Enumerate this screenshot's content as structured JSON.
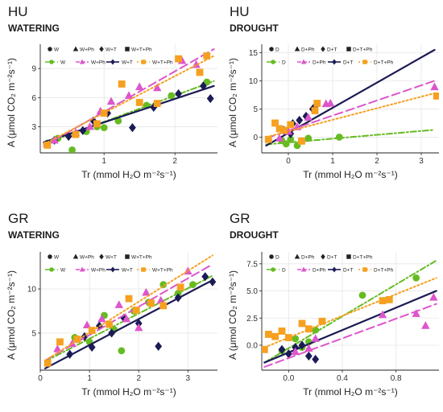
{
  "chart_data": [
    {
      "type": "scatter",
      "region": "HU",
      "condition": "WATERING",
      "xlabel": "Tr (mmol H₂O m⁻²s⁻¹)",
      "ylabel": "A (μmol CO₂ m⁻²s⁻¹)",
      "xlim": [
        0.1,
        2.6
      ],
      "ylim": [
        0.3,
        11.5
      ],
      "xticks": [
        1,
        2
      ],
      "yticks": [
        3,
        6,
        9
      ],
      "grid": true,
      "legend_position": "top",
      "series": [
        {
          "name": "W",
          "color": "#66bb22",
          "shape": "circle",
          "line": "dashdot",
          "x": [
            0.2,
            0.35,
            0.55,
            0.75,
            0.9,
            1.0,
            1.2,
            1.6,
            1.95,
            2.45
          ],
          "y": [
            1.3,
            1.8,
            0.6,
            2.5,
            3.0,
            2.9,
            3.6,
            5.2,
            6.2,
            7.6
          ],
          "fit": [
            [
              0.15,
              1.2
            ],
            [
              2.55,
              7.7
            ]
          ]
        },
        {
          "name": "W+T",
          "color": "#1b1b55",
          "shape": "diamond",
          "line": "solid",
          "x": [
            0.3,
            0.5,
            0.7,
            0.85,
            1.05,
            1.4,
            1.7,
            2.05,
            2.4,
            2.5
          ],
          "y": [
            1.6,
            2.0,
            2.6,
            3.6,
            4.4,
            2.9,
            5.0,
            6.4,
            7.2,
            5.9
          ],
          "fit": [
            [
              0.15,
              1.4
            ],
            [
              2.55,
              7.2
            ]
          ]
        },
        {
          "name": "W+Ph",
          "color": "#dd55cc",
          "shape": "triangle",
          "line": "longdash",
          "x": [
            0.3,
            0.6,
            0.8,
            0.95,
            1.1,
            1.35,
            1.5,
            1.75,
            2.1,
            2.3
          ],
          "y": [
            1.6,
            2.4,
            3.0,
            4.6,
            5.6,
            6.2,
            7.1,
            7.0,
            9.8,
            9.4
          ],
          "fit": [
            [
              0.15,
              1.0
            ],
            [
              2.55,
              11.0
            ]
          ]
        },
        {
          "name": "W+T+Ph",
          "color": "#f6a020",
          "shape": "square",
          "line": "dotted",
          "x": [
            0.2,
            0.6,
            0.9,
            1.0,
            1.25,
            1.5,
            1.75,
            2.05,
            2.35,
            2.45
          ],
          "y": [
            1.1,
            2.2,
            3.3,
            4.4,
            7.4,
            5.5,
            5.4,
            10.0,
            8.6,
            10.3
          ],
          "fit": [
            [
              0.15,
              1.2
            ],
            [
              2.55,
              10.3
            ]
          ]
        }
      ]
    },
    {
      "type": "scatter",
      "region": "HU",
      "condition": "DROUGHT",
      "xlabel": "Tr (mmol H₂O m⁻²s⁻¹)",
      "ylabel": "A (μmol CO₂ m⁻²s⁻¹)",
      "xlim": [
        -0.6,
        3.4
      ],
      "ylim": [
        -2.8,
        16.5
      ],
      "xticks": [
        0,
        1,
        2,
        3
      ],
      "yticks": [
        0,
        5,
        10,
        15
      ],
      "grid": true,
      "legend_position": "top",
      "series": [
        {
          "name": "D",
          "color": "#66bb22",
          "shape": "circle",
          "line": "dashdot",
          "x": [
            -0.15,
            -0.05,
            0.05,
            0.2,
            0.45,
            1.15
          ],
          "y": [
            -0.6,
            -1.2,
            -0.4,
            -1.5,
            -0.2,
            0.0
          ],
          "fit": [
            [
              -0.5,
              -1.3
            ],
            [
              3.3,
              1.3
            ]
          ]
        },
        {
          "name": "D+T",
          "color": "#1b1b55",
          "shape": "diamond",
          "line": "solid",
          "x": [
            -0.1,
            0.05,
            0.1,
            0.25,
            0.4,
            0.55,
            0.6
          ],
          "y": [
            1.2,
            0.6,
            2.4,
            3.0,
            3.7,
            5.0,
            5.4
          ],
          "fit": [
            [
              -0.5,
              -1.5
            ],
            [
              3.3,
              15.5
            ]
          ]
        },
        {
          "name": "D+Ph",
          "color": "#dd55cc",
          "shape": "triangle",
          "line": "longdash",
          "x": [
            -0.2,
            0.0,
            0.2,
            0.45,
            0.85,
            0.95,
            3.3
          ],
          "y": [
            -0.2,
            1.0,
            1.8,
            3.5,
            5.9,
            6.0,
            8.9
          ],
          "fit": [
            [
              -0.5,
              -0.2
            ],
            [
              3.3,
              10.0
            ]
          ]
        },
        {
          "name": "D+T+Ph",
          "color": "#f6a020",
          "shape": "square",
          "line": "dotted",
          "x": [
            -0.45,
            -0.3,
            -0.2,
            -0.1,
            0.05,
            0.3,
            0.6,
            0.65,
            3.35
          ],
          "y": [
            -0.4,
            2.5,
            1.5,
            1.2,
            2.2,
            -0.7,
            4.7,
            6.0,
            7.3
          ],
          "fit": [
            [
              -0.5,
              0.0
            ],
            [
              3.3,
              7.8
            ]
          ]
        }
      ]
    },
    {
      "type": "scatter",
      "region": "GR",
      "condition": "WATERING",
      "xlabel": "Tr (mmol H₂O m⁻²s⁻¹)",
      "ylabel": "A (μmol CO₂ m⁻²s⁻¹)",
      "xlim": [
        0,
        3.6
      ],
      "ylim": [
        0.8,
        14.2
      ],
      "xticks": [
        0,
        1,
        2,
        3
      ],
      "yticks": [
        5,
        10
      ],
      "grid": true,
      "legend_position": "top",
      "series": [
        {
          "name": "W",
          "color": "#66bb22",
          "shape": "circle",
          "line": "dashdot",
          "x": [
            0.7,
            1.0,
            1.3,
            1.5,
            1.65,
            1.9,
            2.2,
            2.5,
            2.8,
            3.1
          ],
          "y": [
            4.5,
            4.0,
            7.0,
            5.4,
            3.0,
            7.5,
            8.5,
            10.5,
            9.5,
            10.5
          ],
          "fit": [
            [
              0.1,
              1.8
            ],
            [
              3.5,
              11.5
            ]
          ]
        },
        {
          "name": "W+T",
          "color": "#1b1b55",
          "shape": "diamond",
          "line": "solid",
          "x": [
            0.6,
            0.9,
            1.05,
            1.2,
            1.45,
            1.7,
            2.0,
            2.4,
            2.8,
            3.35,
            3.5
          ],
          "y": [
            2.6,
            4.6,
            3.4,
            5.8,
            5.0,
            6.7,
            6.1,
            3.5,
            9.0,
            11.4,
            10.8
          ],
          "fit": [
            [
              0.1,
              1.0
            ],
            [
              3.5,
              11.0
            ]
          ]
        },
        {
          "name": "W+Ph",
          "color": "#dd55cc",
          "shape": "triangle",
          "line": "longdash",
          "x": [
            0.35,
            0.65,
            0.95,
            1.25,
            1.6,
            1.75,
            2.0,
            2.15,
            2.45,
            3.0
          ],
          "y": [
            3.2,
            3.8,
            5.9,
            6.6,
            8.2,
            6.6,
            5.6,
            9.6,
            8.7,
            12.0
          ],
          "fit": [
            [
              0.1,
              1.9
            ],
            [
              3.5,
              12.8
            ]
          ]
        },
        {
          "name": "W+T+Ph",
          "color": "#f6a020",
          "shape": "square",
          "line": "dotted",
          "x": [
            0.15,
            0.4,
            0.75,
            1.05,
            1.4,
            1.8,
            1.95,
            2.25,
            2.5,
            2.85
          ],
          "y": [
            1.6,
            4.0,
            4.3,
            5.3,
            6.0,
            8.9,
            7.6,
            8.4,
            8.1,
            10.2
          ],
          "fit": [
            [
              0.1,
              1.9
            ],
            [
              3.5,
              13.8
            ]
          ]
        }
      ]
    },
    {
      "type": "scatter",
      "region": "GR",
      "condition": "DROUGHT",
      "xlabel": "Tr (mmol H₂O m⁻²s⁻¹)",
      "ylabel": "A (μmol CO₂ m⁻²s⁻¹)",
      "xlim": [
        -0.2,
        1.12
      ],
      "ylim": [
        -2.3,
        8.6
      ],
      "xticks": [
        0.0,
        0.4,
        0.8
      ],
      "yticks": [
        0.0,
        2.5,
        5.0,
        7.5
      ],
      "grid": true,
      "legend_position": "top",
      "series": [
        {
          "name": "D",
          "color": "#66bb22",
          "shape": "circle",
          "line": "dashdot",
          "x": [
            -0.05,
            0.05,
            0.1,
            0.15,
            0.2,
            0.55,
            0.95
          ],
          "y": [
            -0.5,
            0.6,
            -0.2,
            0.3,
            1.4,
            4.6,
            6.2
          ],
          "fit": [
            [
              -0.18,
              -1.6
            ],
            [
              1.1,
              7.8
            ]
          ]
        },
        {
          "name": "D+T",
          "color": "#1b1b55",
          "shape": "diamond",
          "line": "solid",
          "x": [
            -0.05,
            0.0,
            0.05,
            0.1,
            0.15,
            0.2
          ],
          "y": [
            -0.4,
            -0.8,
            -0.2,
            0.0,
            -1.0,
            -1.3
          ],
          "fit": [
            [
              -0.18,
              -1.6
            ],
            [
              1.1,
              5.0
            ]
          ]
        },
        {
          "name": "D+Ph",
          "color": "#dd55cc",
          "shape": "triangle",
          "line": "longdash",
          "x": [
            0.05,
            0.15,
            0.2,
            0.7,
            0.95,
            1.02,
            1.08
          ],
          "y": [
            -0.6,
            -0.3,
            0.6,
            2.8,
            2.9,
            1.8,
            4.4
          ],
          "fit": [
            [
              -0.18,
              -2.0
            ],
            [
              1.1,
              3.8
            ]
          ]
        },
        {
          "name": "D+T+Ph",
          "color": "#f6a020",
          "shape": "square",
          "line": "dotted",
          "x": [
            -0.18,
            -0.15,
            -0.1,
            -0.05,
            0.0,
            0.1,
            0.15,
            0.25,
            0.7,
            0.75
          ],
          "y": [
            -0.4,
            1.0,
            0.8,
            1.3,
            0.7,
            2.0,
            1.5,
            2.2,
            4.1,
            4.2
          ],
          "fit": [
            [
              -0.18,
              -0.2
            ],
            [
              1.1,
              6.2
            ]
          ]
        }
      ]
    }
  ]
}
